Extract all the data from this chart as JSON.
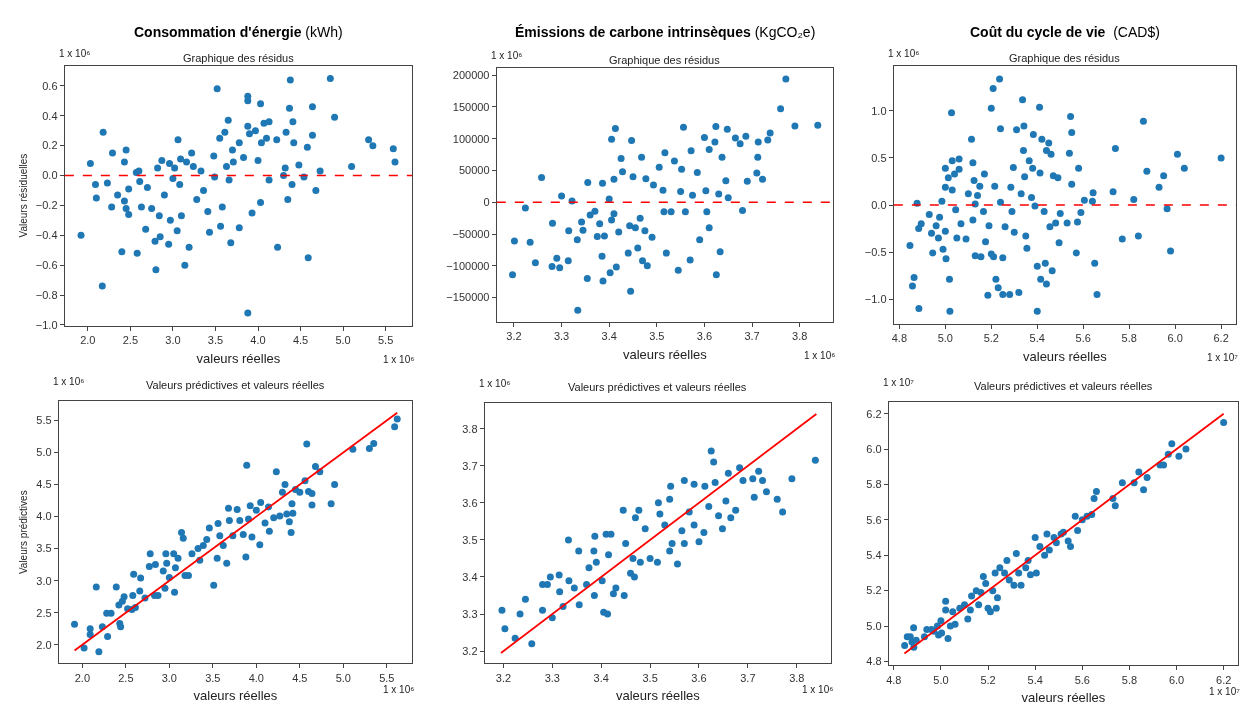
{
  "chart_data": [
    {
      "type": "scatter",
      "title": "Consommation d'énergie (kWh)",
      "subtitle": "Graphique des résidus",
      "xlabel": "valeurs réelles",
      "ylabel": "Valeurs résiduelles",
      "annotations": [
        "1 x 10⁶",
        "1 x 10⁶"
      ],
      "marker": "circle",
      "xlim": [
        1.73,
        5.81
      ],
      "ylim": [
        -1.005,
        0.736
      ],
      "xticks": [
        {
          "value": 2,
          "label": "2.0"
        },
        2.5,
        {
          "value": 3,
          "label": "3.0"
        },
        3.5,
        {
          "value": 4,
          "label": "4.0"
        },
        4.5,
        {
          "value": 5,
          "label": "5.0"
        },
        5.5
      ],
      "yticks": [
        {
          "value": -1,
          "label": "−1.0"
        },
        {
          "value": -0.8,
          "label": "−0.8"
        },
        {
          "value": -0.6,
          "label": "−0.6"
        },
        {
          "value": -0.4,
          "label": "−0.4"
        },
        {
          "value": -0.2,
          "label": "−0.2"
        },
        {
          "value": 0,
          "label": "0.0"
        },
        0.2,
        0.4,
        0.6
      ],
      "ref_lines": [
        {
          "axis": "y",
          "value": 0,
          "color": "#ff0000",
          "line_style": "dashed"
        }
      ],
      "series": [
        {
          "type": "scatter",
          "color": "#1f77b4",
          "x": [
            1.92,
            2.03,
            2.09,
            2.1,
            2.17,
            2.18,
            2.23,
            2.28,
            2.29,
            2.35,
            2.4,
            2.43,
            2.43,
            2.45,
            2.45,
            2.48,
            2.48,
            2.57,
            2.58,
            2.6,
            2.61,
            2.63,
            2.68,
            2.7,
            2.75,
            2.79,
            2.8,
            2.82,
            2.84,
            2.85,
            2.87,
            2.9,
            2.95,
            2.96,
            2.97,
            3.0,
            3.02,
            3.05,
            3.06,
            3.08,
            3.09,
            3.1,
            3.14,
            3.16,
            3.19,
            3.22,
            3.24,
            3.28,
            3.33,
            3.36,
            3.41,
            3.43,
            3.48,
            3.49,
            3.52,
            3.55,
            3.56,
            3.58,
            3.61,
            3.63,
            3.65,
            3.66,
            3.68,
            3.7,
            3.71,
            3.78,
            3.78,
            3.83,
            3.88,
            3.88,
            3.88,
            3.88,
            3.9,
            3.93,
            3.97,
            4.0,
            4.03,
            4.03,
            4.04,
            4.07,
            4.1,
            4.13,
            4.13,
            4.22,
            4.23,
            4.3,
            4.32,
            4.33,
            4.35,
            4.38,
            4.37,
            4.4,
            4.41,
            4.42,
            4.48,
            4.54,
            4.58,
            4.59,
            4.64,
            4.64,
            4.68,
            4.73,
            4.85,
            4.9,
            5.1,
            5.3,
            5.35,
            5.59,
            5.61
          ],
          "values": [
            -0.4,
            0.08,
            -0.06,
            -0.15,
            -0.74,
            0.29,
            -0.05,
            -0.21,
            0.15,
            -0.13,
            -0.51,
            0.09,
            -0.17,
            0.17,
            -0.22,
            -0.26,
            -0.09,
            0.02,
            -0.52,
            0.03,
            -0.04,
            -0.21,
            -0.36,
            -0.08,
            -0.22,
            -0.44,
            -0.63,
            0.05,
            -0.27,
            -0.41,
            0.1,
            -0.13,
            -0.46,
            0.08,
            -0.3,
            -0.02,
            0.05,
            -0.37,
            0.24,
            -0.06,
            0.11,
            -0.27,
            -0.6,
            0.09,
            -0.48,
            0.15,
            0.06,
            -0.16,
            0.03,
            -0.1,
            -0.24,
            -0.38,
            0.13,
            -0.01,
            0.58,
            0.25,
            -0.34,
            -0.21,
            0.29,
            0.06,
            0.37,
            -0.03,
            -0.45,
            0.17,
            0.09,
            0.22,
            -0.35,
            0.12,
            0.53,
            0.5,
            -0.92,
            0.33,
            0.28,
            -0.25,
            0.3,
            0.1,
            0.48,
            -0.18,
            0.22,
            0.35,
            0.25,
            0.36,
            -0.03,
            0.24,
            -0.48,
            0.0,
            0.05,
            0.29,
            -0.16,
            0.64,
            0.45,
            -0.06,
            0.36,
            0.22,
            0.07,
            -0.01,
            0.19,
            -0.55,
            0.46,
            0.27,
            -0.1,
            0.03,
            0.65,
            0.39,
            0.06,
            0.24,
            0.2,
            0.18,
            0.09
          ]
        }
      ]
    },
    {
      "type": "scatter",
      "title": "Émissions de carbone intrinsèques (KgCO₂e)",
      "subtitle": "Graphique des résidus",
      "xlabel": "valeurs réelles",
      "annotations": [
        "1 x 10⁶",
        "1 x 10⁶"
      ],
      "marker": "circle",
      "xlim": [
        3.164,
        3.87
      ],
      "ylim": [
        -188000,
        212000
      ],
      "xticks": [
        3.2,
        3.3,
        3.4,
        3.5,
        3.6,
        3.7,
        3.8
      ],
      "yticks": [
        {
          "value": -150000,
          "label": "−150000"
        },
        {
          "value": -100000,
          "label": "−100000"
        },
        {
          "value": -50000,
          "label": "−50000"
        },
        0,
        50000,
        100000,
        150000,
        200000
      ],
      "ref_lines": [
        {
          "axis": "y",
          "value": 0,
          "color": "#ff0000",
          "line_style": "dashed"
        }
      ],
      "series": [
        {
          "type": "scatter",
          "color": "#1f77b4",
          "x": [
            3.197,
            3.201,
            3.224,
            3.234,
            3.245,
            3.258,
            3.28,
            3.281,
            3.29,
            3.296,
            3.3,
            3.314,
            3.315,
            3.322,
            3.333,
            3.334,
            3.342,
            3.345,
            3.354,
            3.355,
            3.36,
            3.37,
            3.375,
            3.38,
            3.385,
            3.386,
            3.387,
            3.39,
            3.4,
            3.402,
            3.405,
            3.405,
            3.41,
            3.41,
            3.413,
            3.415,
            3.42,
            3.425,
            3.428,
            3.44,
            3.443,
            3.445,
            3.447,
            3.45,
            3.455,
            3.46,
            3.465,
            3.468,
            3.47,
            3.475,
            3.477,
            3.48,
            3.49,
            3.493,
            3.505,
            3.513,
            3.515,
            3.517,
            3.52,
            3.53,
            3.537,
            3.545,
            3.55,
            3.552,
            3.556,
            3.56,
            3.57,
            3.572,
            3.575,
            3.585,
            3.59,
            3.6,
            3.603,
            3.605,
            3.61,
            3.61,
            3.622,
            3.624,
            3.625,
            3.63,
            3.633,
            3.637,
            3.645,
            3.648,
            3.65,
            3.665,
            3.675,
            3.68,
            3.687,
            3.69,
            3.713,
            3.712,
            3.71,
            3.722,
            3.733,
            3.738,
            3.76,
            3.771,
            3.79,
            3.838
          ],
          "values": [
            -114000,
            -61000,
            -9000,
            -63000,
            -95000,
            39000,
            -101000,
            -33000,
            -88000,
            -103000,
            10000,
            -92000,
            -45000,
            2000,
            -59000,
            -170000,
            -31000,
            -44000,
            -120000,
            31000,
            -20000,
            -14000,
            -54000,
            -34000,
            -85000,
            30000,
            -124000,
            -53000,
            5000,
            -111000,
            -28000,
            99000,
            36000,
            -18000,
            116000,
            -102000,
            -47000,
            69000,
            48000,
            -80000,
            -37000,
            -140000,
            97000,
            40000,
            -40000,
            -72000,
            -25000,
            71000,
            -92000,
            -45000,
            37000,
            -100000,
            -55000,
            27000,
            55000,
            19000,
            -15000,
            78000,
            -80000,
            -15000,
            65000,
            -107000,
            17000,
            52000,
            118000,
            -15000,
            -91000,
            81000,
            11000,
            47000,
            -59000,
            102000,
            18000,
            -15000,
            83000,
            -40000,
            95000,
            119000,
            -114000,
            13000,
            -78000,
            71000,
            34000,
            115000,
            7000,
            101000,
            92000,
            -13000,
            104000,
            33000,
            95000,
            71000,
            46000,
            36000,
            98000,
            109000,
            147000,
            194000,
            120000,
            121000
          ]
        }
      ]
    },
    {
      "type": "scatter",
      "title": "Coût du cycle de vie  (CAD$)",
      "subtitle": "Graphique des résidus",
      "xlabel": "valeurs réelles",
      "annotations": [
        "1 x 10⁶",
        "1 x 10⁷"
      ],
      "marker": "circle",
      "xlim": [
        4.776,
        6.265
      ],
      "ylim": [
        -1.262,
        1.483
      ],
      "xticks": [
        4.8,
        {
          "value": 5,
          "label": "5.0"
        },
        5.2,
        5.4,
        5.6,
        5.8,
        {
          "value": 6,
          "label": "6.0"
        },
        6.2
      ],
      "yticks": [
        {
          "value": -1,
          "label": "−1.0"
        },
        {
          "value": -0.5,
          "label": "−0.5"
        },
        {
          "value": 0,
          "label": "0.0"
        },
        0.5,
        {
          "value": 1,
          "label": "1.0"
        }
      ],
      "ref_lines": [
        {
          "axis": "y",
          "value": 0,
          "color": "#ff0000",
          "line_style": "dashed"
        }
      ],
      "series": [
        {
          "type": "scatter",
          "color": "#1f77b4",
          "x": [
            4.846,
            4.857,
            4.864,
            4.877,
            4.884,
            4.885,
            4.895,
            4.93,
            4.94,
            4.945,
            4.96,
            4.97,
            4.975,
            4.985,
            4.99,
            5.0,
            5.0,
            5.0,
            5.003,
            5.013,
            5.018,
            5.02,
            5.027,
            5.03,
            5.03,
            5.04,
            5.045,
            5.05,
            5.06,
            5.06,
            5.068,
            5.09,
            5.1,
            5.114,
            5.12,
            5.12,
            5.125,
            5.13,
            5.13,
            5.14,
            5.15,
            5.155,
            5.166,
            5.17,
            5.175,
            5.185,
            5.19,
            5.2,
            5.2,
            5.208,
            5.21,
            5.215,
            5.22,
            5.23,
            5.236,
            5.24,
            5.24,
            5.25,
            5.25,
            5.26,
            5.28,
            5.285,
            5.29,
            5.296,
            5.3,
            5.31,
            5.32,
            5.33,
            5.336,
            5.34,
            5.342,
            5.345,
            5.35,
            5.355,
            5.365,
            5.375,
            5.38,
            5.383,
            5.39,
            5.4,
            5.4,
            5.41,
            5.412,
            5.415,
            5.42,
            5.43,
            5.435,
            5.44,
            5.44,
            5.45,
            5.455,
            5.46,
            5.465,
            5.47,
            5.48,
            5.49,
            5.495,
            5.5,
            5.53,
            5.54,
            5.545,
            5.55,
            5.55,
            5.57,
            5.575,
            5.58,
            5.59,
            5.605,
            5.64,
            5.643,
            5.65,
            5.66,
            5.73,
            5.74,
            5.77,
            5.82,
            5.84,
            5.862,
            5.877,
            5.93,
            5.95,
            5.965,
            5.98,
            6.01,
            6.04,
            6.2
          ],
          "values": [
            -0.43,
            -0.86,
            -0.77,
            0.02,
            -0.25,
            -1.1,
            -0.2,
            -0.1,
            -0.3,
            -0.51,
            -0.22,
            -0.35,
            -0.13,
            0.04,
            -0.47,
            0.39,
            0.19,
            -0.28,
            -0.57,
            0.29,
            -0.79,
            -1.13,
            0.98,
            0.16,
            0.47,
            0.33,
            -0.05,
            -0.35,
            0.49,
            0.38,
            -0.2,
            -0.36,
            0.12,
            0.7,
            0.45,
            -0.16,
            0.26,
            0.01,
            -0.54,
            0.1,
            0.2,
            -0.55,
            -0.07,
            0.33,
            -0.39,
            -0.96,
            -0.22,
            1.03,
            -0.52,
            1.24,
            -0.55,
            0.2,
            -0.79,
            -0.88,
            1.34,
            0.81,
            0.03,
            -0.56,
            -0.95,
            -0.23,
            -0.95,
            0.19,
            -0.07,
            0.4,
            -0.29,
            0.8,
            -0.93,
            0.12,
            1.12,
            0.58,
            0.84,
            0.3,
            -0.33,
            -0.46,
            0.47,
            0.08,
            0.39,
            0.75,
            -0.01,
            -1.13,
            -0.65,
            1.04,
            0.34,
            -0.79,
            0.7,
            -0.07,
            -0.62,
            0.58,
            -0.84,
            0.66,
            -0.23,
            0.54,
            -0.7,
            0.31,
            -0.19,
            0.29,
            -0.4,
            -0.09,
            -0.19,
            0.55,
            0.94,
            0.77,
            0.22,
            -0.51,
            -0.18,
            0.39,
            -0.08,
            0.05,
            0.04,
            0.13,
            -0.62,
            -0.95,
            0.14,
            0.6,
            -0.36,
            0.06,
            -0.33,
            0.89,
            0.36,
            0.19,
            0.31,
            -0.04,
            -0.49,
            0.54,
            0.39,
            0.5
          ]
        }
      ]
    },
    {
      "type": "scatter",
      "title": "Valeurs prédictives et valeurs réelles",
      "xlabel": "valeurs réelles",
      "ylabel": "Valeurs prédictives",
      "annotations": [
        "1 x 10⁶",
        "1 x 10⁶"
      ],
      "marker": "circle",
      "xlim": [
        1.73,
        5.79
      ],
      "ylim": [
        1.71,
        5.8
      ],
      "xticks": [
        {
          "value": 2,
          "label": "2.0"
        },
        2.5,
        {
          "value": 3,
          "label": "3.0"
        },
        3.5,
        {
          "value": 4,
          "label": "4.0"
        },
        4.5,
        {
          "value": 5,
          "label": "5.0"
        },
        5.5
      ],
      "yticks": [
        {
          "value": 2,
          "label": "2.0"
        },
        2.5,
        {
          "value": 3,
          "label": "3.0"
        },
        3.5,
        {
          "value": 4,
          "label": "4.0"
        },
        4.5,
        {
          "value": 5,
          "label": "5.0"
        },
        5.5
      ],
      "series": [
        {
          "type": "scatter",
          "color": "#1f77b4",
          "x": [
            1.91,
            2.02,
            2.09,
            2.09,
            2.16,
            2.19,
            2.23,
            2.28,
            2.29,
            2.33,
            2.39,
            2.42,
            2.43,
            2.44,
            2.46,
            2.48,
            2.52,
            2.57,
            2.58,
            2.59,
            2.61,
            2.66,
            2.67,
            2.72,
            2.77,
            2.78,
            2.83,
            2.84,
            2.87,
            2.93,
            2.95,
            2.96,
            2.97,
            3.0,
            3.05,
            3.06,
            3.07,
            3.1,
            3.14,
            3.16,
            3.18,
            3.22,
            3.26,
            3.33,
            3.35,
            3.39,
            3.43,
            3.46,
            3.51,
            3.55,
            3.56,
            3.58,
            3.62,
            3.66,
            3.68,
            3.69,
            3.73,
            3.78,
            3.81,
            3.85,
            3.88,
            3.89,
            3.91,
            3.93,
            3.95,
            4.0,
            4.04,
            4.05,
            4.1,
            4.14,
            4.15,
            4.2,
            4.23,
            4.27,
            4.3,
            4.33,
            4.35,
            4.38,
            4.4,
            4.41,
            4.42,
            4.45,
            4.5,
            4.56,
            4.58,
            4.6,
            4.64,
            4.64,
            4.68,
            4.73,
            4.86,
            4.9,
            5.11,
            5.3,
            5.35,
            5.59,
            5.62
          ],
          "values": [
            2.32,
            1.95,
            2.25,
            2.16,
            2.9,
            1.89,
            2.28,
            2.49,
            2.13,
            2.49,
            2.9,
            2.62,
            2.33,
            2.28,
            2.68,
            2.75,
            2.56,
            2.55,
            2.77,
            3.1,
            2.58,
            2.84,
            3.04,
            2.73,
            3.22,
            3.42,
            2.77,
            3.25,
            2.77,
            3.15,
            2.88,
            3.42,
            3.27,
            3.05,
            3.42,
            2.82,
            3.2,
            3.35,
            3.75,
            3.66,
            3.08,
            3.08,
            3.42,
            3.5,
            3.32,
            3.55,
            3.64,
            3.82,
            2.93,
            3.35,
            3.89,
            3.7,
            3.55,
            3.27,
            4.13,
            3.94,
            3.7,
            4.11,
            3.94,
            3.72,
            3.37,
            4.8,
            3.96,
            4.17,
            3.68,
            4.1,
            3.56,
            4.22,
            3.9,
            4.15,
            3.77,
            3.98,
            4.7,
            4.01,
            4.38,
            4.5,
            4.04,
            3.92,
            3.75,
            4.2,
            4.05,
            4.42,
            4.38,
            4.56,
            5.13,
            4.39,
            4.36,
            4.18,
            4.78,
            4.7,
            4.2,
            4.5,
            5.05,
            5.06,
            5.14,
            5.4,
            5.52
          ]
        },
        {
          "type": "line",
          "marker": "none",
          "color": "#ff0000",
          "x": [
            1.91,
            5.62
          ],
          "values": [
            1.91,
            5.62
          ]
        }
      ]
    },
    {
      "type": "scatter",
      "title": "Valeurs prédictives et valeurs réelles",
      "xlabel": "valeurs réelles",
      "annotations": [
        "1 x 10⁶",
        "1 x 10⁶"
      ],
      "marker": "circle",
      "xlim": [
        3.162,
        3.87
      ],
      "ylim": [
        3.167,
        3.869
      ],
      "xticks": [
        3.2,
        3.3,
        3.4,
        3.5,
        3.6,
        3.7,
        3.8
      ],
      "yticks": [
        3.2,
        3.3,
        3.4,
        3.5,
        3.6,
        3.7,
        3.8
      ],
      "series": [
        {
          "type": "scatter",
          "color": "#1f77b4",
          "x": [
            3.197,
            3.203,
            3.224,
            3.234,
            3.245,
            3.258,
            3.28,
            3.28,
            3.29,
            3.296,
            3.3,
            3.314,
            3.315,
            3.322,
            3.333,
            3.334,
            3.345,
            3.354,
            3.355,
            3.37,
            3.375,
            3.385,
            3.386,
            3.387,
            3.39,
            3.402,
            3.405,
            3.41,
            3.413,
            3.415,
            3.42,
            3.425,
            3.43,
            3.445,
            3.447,
            3.45,
            3.46,
            3.465,
            3.468,
            3.47,
            3.477,
            3.48,
            3.49,
            3.5,
            3.515,
            3.517,
            3.52,
            3.53,
            3.54,
            3.54,
            3.542,
            3.545,
            3.556,
            3.565,
            3.57,
            3.57,
            3.58,
            3.59,
            3.59,
            3.6,
            3.61,
            3.612,
            3.62,
            3.625,
            3.63,
            3.633,
            3.64,
            3.648,
            3.655,
            3.66,
            3.665,
            3.675,
            3.683,
            3.69,
            3.71,
            3.713,
            3.722,
            3.73,
            3.738,
            3.76,
            3.771,
            3.79,
            3.838
          ],
          "values": [
            3.31,
            3.26,
            3.235,
            3.3,
            3.34,
            3.22,
            3.31,
            3.38,
            3.38,
            3.4,
            3.29,
            3.405,
            3.36,
            3.32,
            3.5,
            3.39,
            3.37,
            3.47,
            3.325,
            3.38,
            3.425,
            3.47,
            3.35,
            3.51,
            3.44,
            3.39,
            3.305,
            3.515,
            3.3,
            3.46,
            3.515,
            3.355,
            3.37,
            3.58,
            3.35,
            3.49,
            3.41,
            3.45,
            3.4,
            3.56,
            3.58,
            3.44,
            3.53,
            3.45,
            3.44,
            3.6,
            3.57,
            3.54,
            3.61,
            3.47,
            3.645,
            3.49,
            3.435,
            3.525,
            3.66,
            3.49,
            3.575,
            3.54,
            3.65,
            3.495,
            3.52,
            3.645,
            3.59,
            3.74,
            3.71,
            3.655,
            3.565,
            3.53,
            3.605,
            3.68,
            3.56,
            3.58,
            3.695,
            3.66,
            3.665,
            3.615,
            3.685,
            3.66,
            3.63,
            3.61,
            3.575,
            3.665,
            3.715
          ]
        },
        {
          "type": "line",
          "marker": "none",
          "color": "#ff0000",
          "x": [
            3.195,
            3.84
          ],
          "values": [
            3.195,
            3.84
          ]
        }
      ]
    },
    {
      "type": "scatter",
      "title": "Valeurs prédictives et valeurs réelles",
      "xlabel": "valeurs réelles",
      "annotations": [
        "1 x 10⁷",
        "1 x 10⁷"
      ],
      "marker": "circle",
      "xlim": [
        4.779,
        6.261
      ],
      "ylim": [
        4.778,
        6.265
      ],
      "xticks": [
        4.8,
        {
          "value": 5,
          "label": "5.0"
        },
        5.2,
        5.4,
        5.6,
        5.8,
        {
          "value": 6,
          "label": "6.0"
        },
        6.2
      ],
      "yticks": [
        4.8,
        {
          "value": 5,
          "label": "5.0"
        },
        5.2,
        5.4,
        5.6,
        5.8,
        {
          "value": 6,
          "label": "6.0"
        },
        6.2
      ],
      "series": [
        {
          "type": "scatter",
          "color": "#1f77b4",
          "x": [
            4.846,
            4.857,
            4.87,
            4.877,
            4.884,
            4.885,
            4.895,
            4.93,
            4.94,
            4.96,
            4.97,
            4.985,
            4.99,
            5.0,
            5.003,
            5.02,
            5.02,
            5.03,
            5.04,
            5.05,
            5.06,
            5.08,
            5.1,
            5.114,
            5.125,
            5.13,
            5.15,
            5.16,
            5.17,
            5.18,
            5.19,
            5.2,
            5.21,
            5.22,
            5.23,
            5.235,
            5.24,
            5.25,
            5.27,
            5.28,
            5.29,
            5.31,
            5.32,
            5.33,
            5.34,
            5.36,
            5.37,
            5.38,
            5.4,
            5.405,
            5.42,
            5.44,
            5.45,
            5.46,
            5.48,
            5.49,
            5.51,
            5.52,
            5.54,
            5.55,
            5.57,
            5.58,
            5.6,
            5.62,
            5.64,
            5.65,
            5.66,
            5.73,
            5.74,
            5.77,
            5.82,
            5.84,
            5.86,
            5.875,
            5.93,
            5.945,
            5.965,
            5.98,
            6.01,
            6.04,
            6.2
          ],
          "values": [
            4.89,
            4.94,
            4.94,
            4.91,
            4.99,
            4.88,
            4.92,
            4.94,
            4.98,
            4.98,
            4.97,
            5.0,
            4.95,
            5.03,
            4.96,
            5.14,
            5.09,
            4.93,
            5.0,
            5.08,
            5.01,
            5.1,
            5.12,
            5.04,
            5.09,
            5.17,
            5.2,
            5.12,
            5.19,
            5.28,
            5.24,
            5.1,
            5.08,
            5.2,
            5.3,
            5.1,
            5.16,
            5.33,
            5.3,
            5.37,
            5.26,
            5.23,
            5.41,
            5.3,
            5.23,
            5.33,
            5.37,
            5.29,
            5.5,
            5.3,
            5.45,
            5.4,
            5.52,
            5.43,
            5.5,
            5.47,
            5.52,
            5.53,
            5.48,
            5.45,
            5.62,
            5.54,
            5.6,
            5.62,
            5.63,
            5.72,
            5.76,
            5.72,
            5.68,
            5.81,
            5.81,
            5.87,
            5.77,
            5.84,
            5.91,
            5.91,
            5.97,
            6.03,
            5.96,
            6.0,
            6.15
          ]
        },
        {
          "type": "line",
          "marker": "none",
          "color": "#ff0000",
          "x": [
            4.845,
            6.2
          ],
          "values": [
            4.845,
            6.2
          ]
        }
      ]
    }
  ]
}
